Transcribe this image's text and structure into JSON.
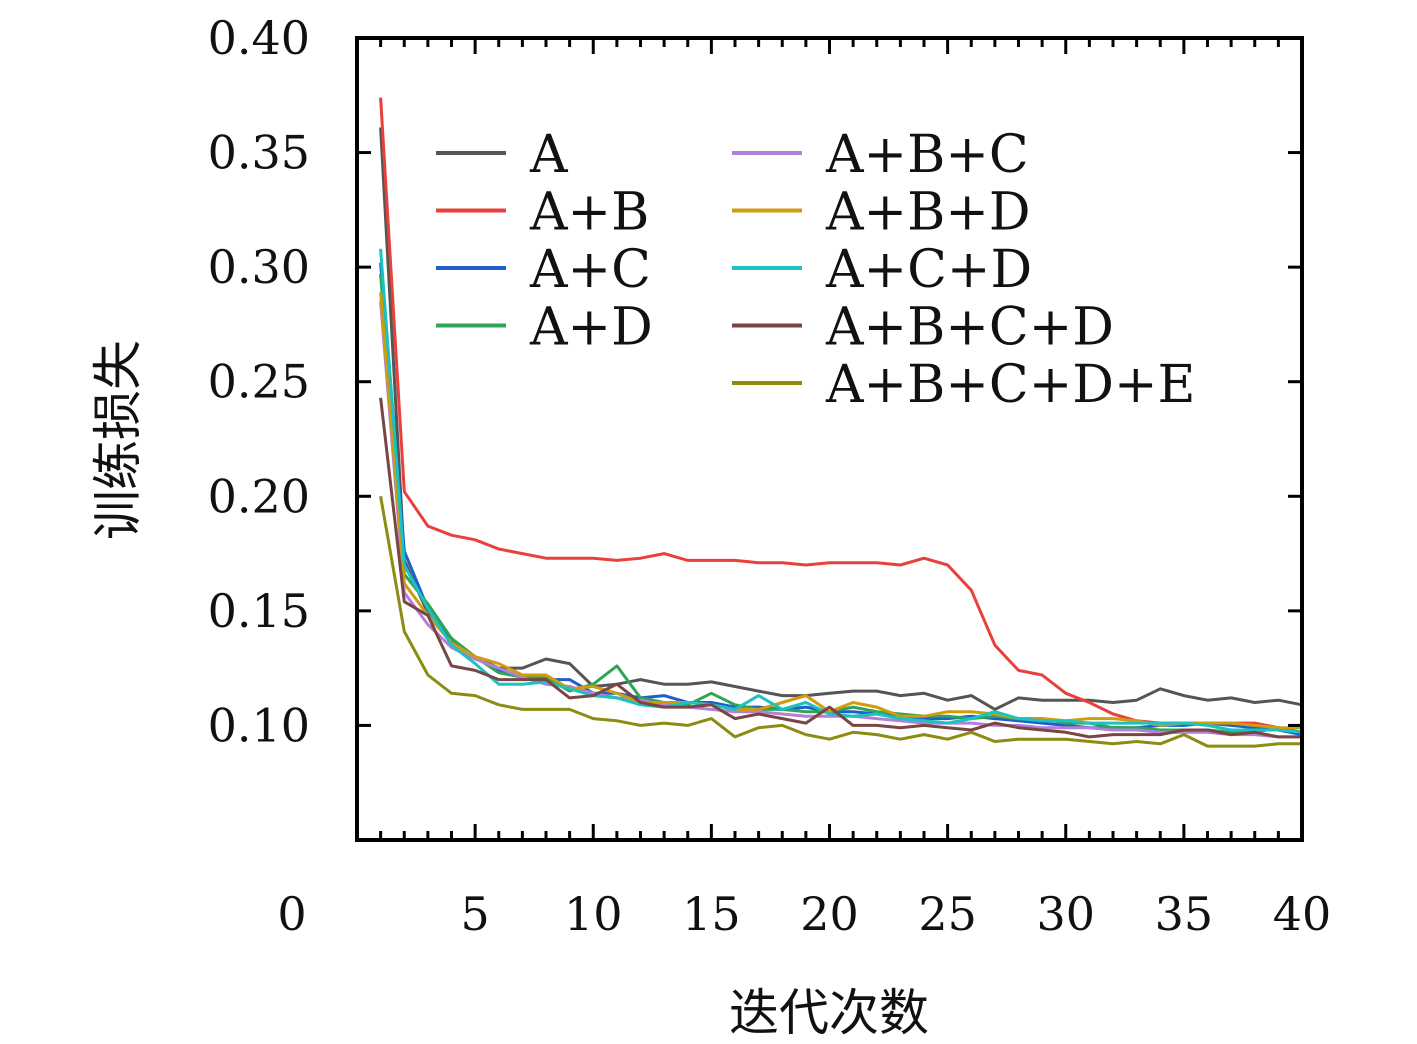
{
  "chart_data": {
    "type": "line",
    "xlabel": "迭代次数",
    "ylabel": "训练损失",
    "xlim": [
      0,
      40
    ],
    "ylim": [
      0.05,
      0.4
    ],
    "x_ticks": [
      {
        "value": 0,
        "label": "0"
      },
      {
        "value": 5,
        "label": "5"
      },
      {
        "value": 10,
        "label": "10"
      },
      {
        "value": 15,
        "label": "15"
      },
      {
        "value": 20,
        "label": "20"
      },
      {
        "value": 25,
        "label": "25"
      },
      {
        "value": 30,
        "label": "30"
      },
      {
        "value": 35,
        "label": "35"
      },
      {
        "value": 40,
        "label": "40"
      }
    ],
    "y_ticks": [
      {
        "value": 0.1,
        "label": "0.10"
      },
      {
        "value": 0.15,
        "label": "0.15"
      },
      {
        "value": 0.2,
        "label": "0.20"
      },
      {
        "value": 0.25,
        "label": "0.25"
      },
      {
        "value": 0.3,
        "label": "0.30"
      },
      {
        "value": 0.35,
        "label": "0.35"
      },
      {
        "value": 0.4,
        "label": "0.40"
      }
    ],
    "grid": false,
    "legend_position": "top, two columns",
    "x": [
      1,
      2,
      3,
      4,
      5,
      6,
      7,
      8,
      9,
      10,
      11,
      12,
      13,
      14,
      15,
      16,
      17,
      18,
      19,
      20,
      21,
      22,
      23,
      24,
      25,
      26,
      27,
      28,
      29,
      30,
      31,
      32,
      33,
      34,
      35,
      36,
      37,
      38,
      39,
      40
    ],
    "series": [
      {
        "name": "A",
        "color": "#555555",
        "values": [
          0.361,
          0.172,
          0.149,
          0.136,
          0.13,
          0.125,
          0.125,
          0.129,
          0.127,
          0.117,
          0.118,
          0.12,
          0.118,
          0.118,
          0.119,
          0.117,
          0.115,
          0.113,
          0.113,
          0.114,
          0.115,
          0.115,
          0.113,
          0.114,
          0.111,
          0.113,
          0.107,
          0.112,
          0.111,
          0.111,
          0.111,
          0.11,
          0.111,
          0.116,
          0.113,
          0.111,
          0.112,
          0.11,
          0.111,
          0.109
        ]
      },
      {
        "name": "A+B",
        "color": "#e8413c",
        "values": [
          0.374,
          0.202,
          0.187,
          0.183,
          0.181,
          0.177,
          0.175,
          0.173,
          0.173,
          0.173,
          0.172,
          0.173,
          0.175,
          0.172,
          0.172,
          0.172,
          0.171,
          0.171,
          0.17,
          0.171,
          0.171,
          0.171,
          0.17,
          0.173,
          0.17,
          0.159,
          0.135,
          0.124,
          0.122,
          0.114,
          0.11,
          0.105,
          0.102,
          0.101,
          0.101,
          0.101,
          0.101,
          0.101,
          0.099,
          0.097
        ]
      },
      {
        "name": "A+C",
        "color": "#1f5fcc",
        "values": [
          0.302,
          0.176,
          0.151,
          0.137,
          0.13,
          0.124,
          0.121,
          0.12,
          0.12,
          0.114,
          0.114,
          0.112,
          0.113,
          0.11,
          0.11,
          0.108,
          0.108,
          0.107,
          0.108,
          0.106,
          0.106,
          0.105,
          0.104,
          0.103,
          0.103,
          0.104,
          0.103,
          0.102,
          0.101,
          0.1,
          0.099,
          0.099,
          0.099,
          0.1,
          0.1,
          0.101,
          0.1,
          0.099,
          0.098,
          0.096
        ]
      },
      {
        "name": "A+D",
        "color": "#2fa456",
        "values": [
          0.297,
          0.166,
          0.153,
          0.138,
          0.13,
          0.123,
          0.121,
          0.121,
          0.115,
          0.118,
          0.126,
          0.112,
          0.11,
          0.109,
          0.114,
          0.109,
          0.107,
          0.107,
          0.106,
          0.106,
          0.108,
          0.106,
          0.105,
          0.104,
          0.104,
          0.103,
          0.104,
          0.103,
          0.103,
          0.101,
          0.101,
          0.099,
          0.099,
          0.098,
          0.098,
          0.098,
          0.097,
          0.097,
          0.099,
          0.097
        ]
      },
      {
        "name": "A+B+C",
        "color": "#b47fd8",
        "values": [
          0.285,
          0.158,
          0.144,
          0.134,
          0.129,
          0.125,
          0.121,
          0.118,
          0.117,
          0.114,
          0.112,
          0.111,
          0.109,
          0.108,
          0.107,
          0.106,
          0.106,
          0.105,
          0.104,
          0.104,
          0.104,
          0.103,
          0.102,
          0.101,
          0.101,
          0.101,
          0.1,
          0.1,
          0.099,
          0.099,
          0.099,
          0.098,
          0.098,
          0.097,
          0.097,
          0.097,
          0.096,
          0.096,
          0.095,
          0.095
        ]
      },
      {
        "name": "A+B+D",
        "color": "#cf9c10",
        "values": [
          0.289,
          0.162,
          0.148,
          0.136,
          0.13,
          0.127,
          0.122,
          0.122,
          0.116,
          0.117,
          0.114,
          0.11,
          0.11,
          0.11,
          0.109,
          0.107,
          0.107,
          0.11,
          0.113,
          0.106,
          0.11,
          0.108,
          0.104,
          0.104,
          0.106,
          0.106,
          0.105,
          0.103,
          0.103,
          0.102,
          0.103,
          0.103,
          0.102,
          0.1,
          0.101,
          0.101,
          0.101,
          0.1,
          0.099,
          0.099
        ]
      },
      {
        "name": "A+C+D",
        "color": "#1cc1c1",
        "values": [
          0.308,
          0.17,
          0.151,
          0.135,
          0.127,
          0.118,
          0.118,
          0.119,
          0.116,
          0.113,
          0.112,
          0.109,
          0.108,
          0.11,
          0.109,
          0.107,
          0.113,
          0.107,
          0.11,
          0.105,
          0.104,
          0.105,
          0.103,
          0.102,
          0.101,
          0.103,
          0.106,
          0.103,
          0.102,
          0.102,
          0.101,
          0.101,
          0.101,
          0.101,
          0.101,
          0.1,
          0.098,
          0.098,
          0.098,
          0.097
        ]
      },
      {
        "name": "A+B+C+D",
        "color": "#7a4545",
        "values": [
          0.243,
          0.154,
          0.148,
          0.126,
          0.124,
          0.12,
          0.12,
          0.12,
          0.112,
          0.113,
          0.118,
          0.11,
          0.108,
          0.108,
          0.109,
          0.103,
          0.105,
          0.103,
          0.101,
          0.108,
          0.1,
          0.1,
          0.099,
          0.1,
          0.099,
          0.098,
          0.101,
          0.099,
          0.098,
          0.097,
          0.095,
          0.096,
          0.096,
          0.096,
          0.098,
          0.098,
          0.096,
          0.097,
          0.095,
          0.095
        ]
      },
      {
        "name": "A+B+C+D+E",
        "color": "#8c8c12",
        "values": [
          0.2,
          0.141,
          0.122,
          0.114,
          0.113,
          0.109,
          0.107,
          0.107,
          0.107,
          0.103,
          0.102,
          0.1,
          0.101,
          0.1,
          0.103,
          0.095,
          0.099,
          0.1,
          0.096,
          0.094,
          0.097,
          0.096,
          0.094,
          0.096,
          0.094,
          0.097,
          0.093,
          0.094,
          0.094,
          0.094,
          0.093,
          0.092,
          0.093,
          0.092,
          0.096,
          0.091,
          0.091,
          0.091,
          0.092,
          0.092
        ]
      }
    ]
  }
}
